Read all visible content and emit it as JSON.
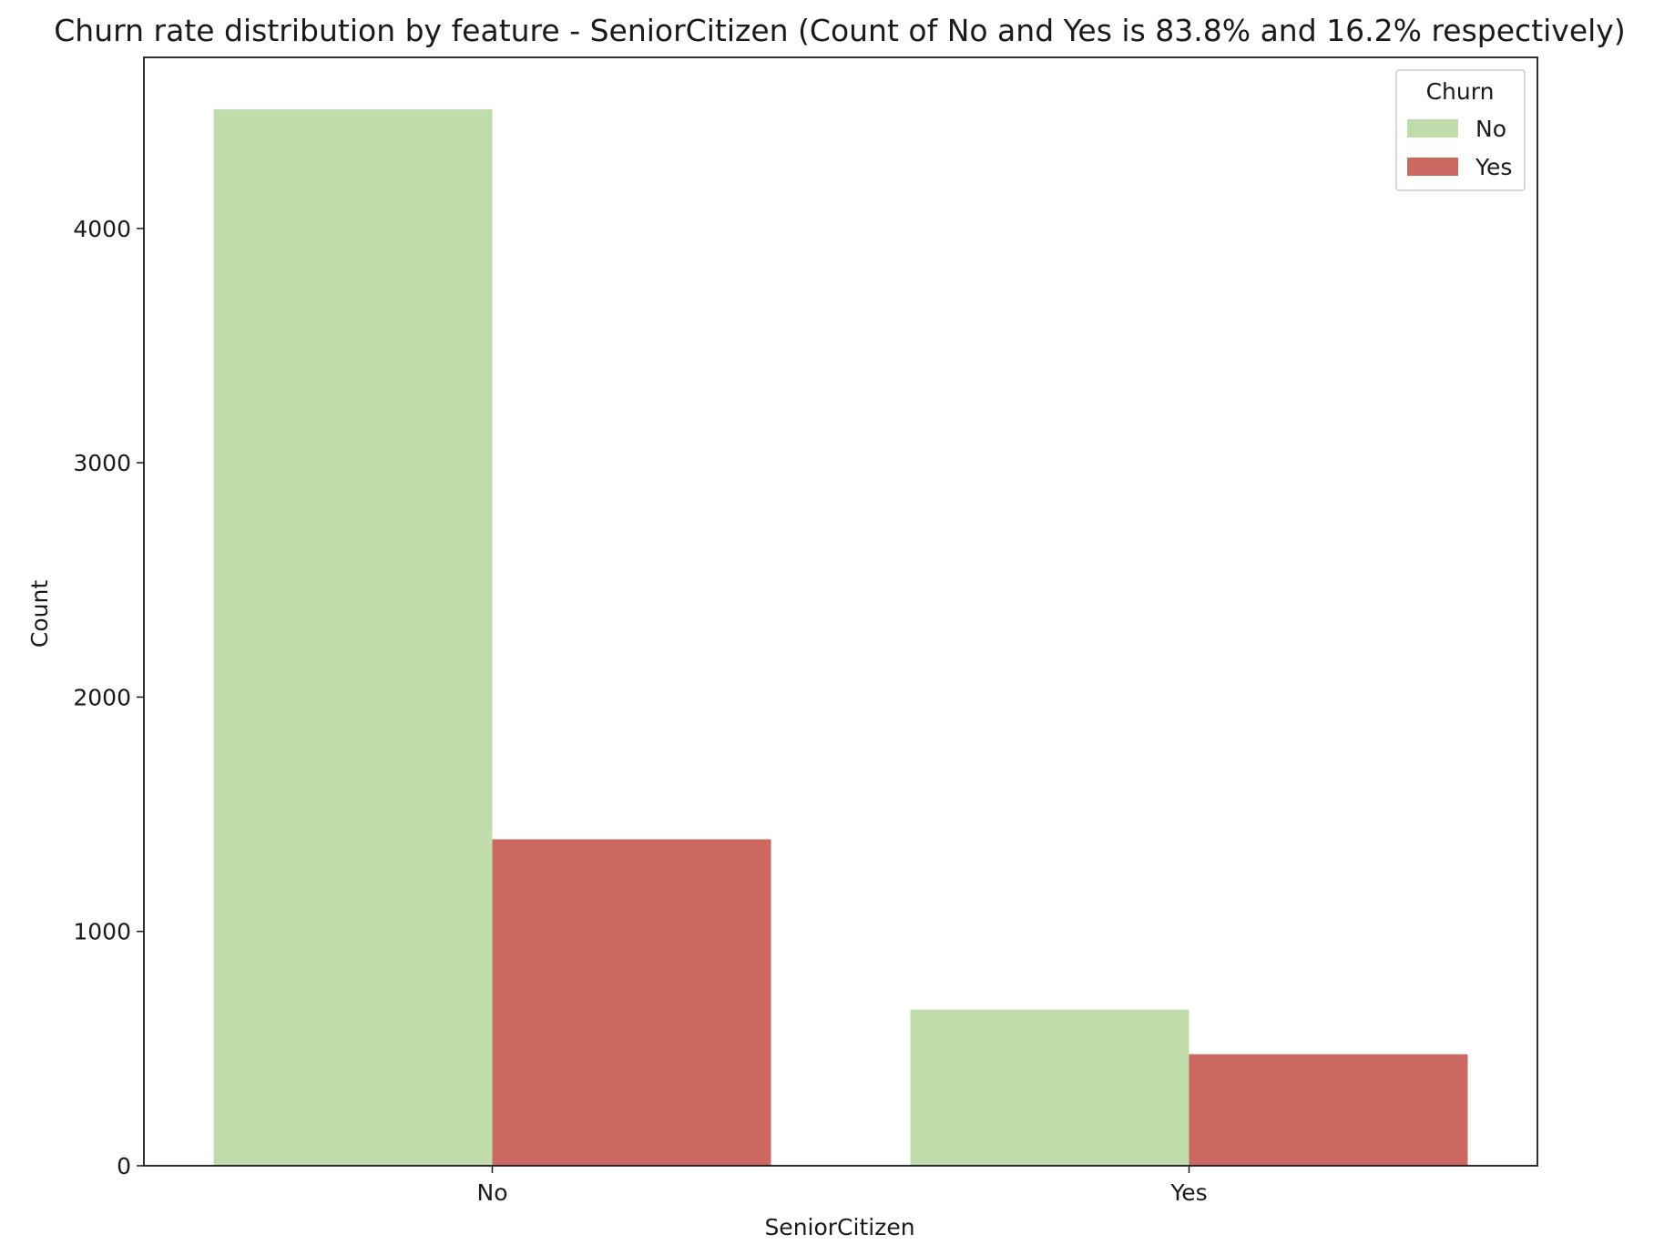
{
  "chart_data": {
    "type": "bar",
    "title": "Churn rate distribution by feature - SeniorCitizen (Count of No and Yes is 83.8% and 16.2%  respectively)",
    "xlabel": "SeniorCitizen",
    "ylabel": "Count",
    "categories": [
      "No",
      "Yes"
    ],
    "ylim": [
      0,
      4730
    ],
    "yticks": [
      0,
      1000,
      2000,
      3000,
      4000
    ],
    "grid": false,
    "legend": {
      "title": "Churn",
      "position": "top-right"
    },
    "series": [
      {
        "name": "No",
        "color": "#c0dcaa",
        "values": [
          4508,
          666
        ]
      },
      {
        "name": "Yes",
        "color": "#cc6762",
        "values": [
          1393,
          476
        ]
      }
    ]
  }
}
